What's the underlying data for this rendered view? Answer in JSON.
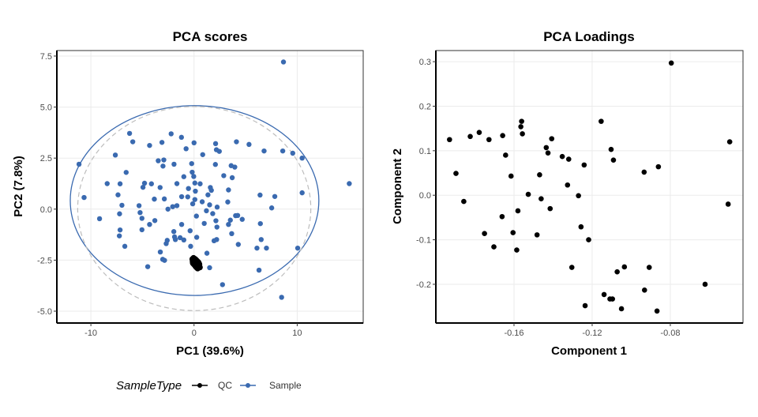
{
  "chart_data": [
    {
      "type": "scatter",
      "title": "PCA scores",
      "xlabel": "PC1 (39.6%)",
      "ylabel": "PC2 (7.8%)",
      "xlim": [
        -13.3,
        16.4
      ],
      "ylim": [
        -5.58,
        7.77
      ],
      "xticks": [
        -10,
        0,
        10
      ],
      "xtick_labels": [
        "-10",
        "0",
        "10"
      ],
      "yticks": [
        -5.0,
        -2.5,
        0.0,
        2.5,
        5.0,
        7.5
      ],
      "ytick_labels": [
        "-5.0",
        "-2.5",
        "0.0",
        "2.5",
        "5.0",
        "7.5"
      ],
      "grid": true,
      "legend": {
        "title": "SampleType",
        "placement": "bottom",
        "entries": [
          {
            "label": "QC",
            "color": "#000000"
          },
          {
            "label": "Sample",
            "color": "#3a6ab0"
          }
        ]
      },
      "ellipses": [
        {
          "name": "Sample",
          "color": "#3a6ab0",
          "style": "solid",
          "cx": 0.05,
          "cy": 0.42,
          "rx": 12.05,
          "ry": 4.65
        },
        {
          "name": "overall",
          "color": "#bdbdbd",
          "style": "dashed",
          "cx": 0.02,
          "cy": 0.03,
          "rx": 11.3,
          "ry": 5.0
        }
      ],
      "series": [
        {
          "name": "Sample",
          "color": "#3a6ab0",
          "points": [
            [
              8.67,
              7.21
            ],
            [
              -11.15,
              2.2
            ],
            [
              -10.66,
              0.57
            ],
            [
              -9.16,
              -0.47
            ],
            [
              -8.42,
              1.25
            ],
            [
              -7.63,
              2.65
            ],
            [
              -7.37,
              0.7
            ],
            [
              -7.24,
              -1.31
            ],
            [
              -7.22,
              -0.23
            ],
            [
              -7.17,
              1.24
            ],
            [
              -7.17,
              -1.02
            ],
            [
              -6.99,
              0.19
            ],
            [
              -6.71,
              -1.82
            ],
            [
              -6.58,
              1.8
            ],
            [
              -6.25,
              3.71
            ],
            [
              -5.94,
              3.3
            ],
            [
              -5.33,
              0.17
            ],
            [
              -5.23,
              -0.17
            ],
            [
              -5.05,
              -0.45
            ],
            [
              -5.05,
              -1.01
            ],
            [
              -4.95,
              1.07
            ],
            [
              -4.8,
              1.27
            ],
            [
              -4.49,
              -2.82
            ],
            [
              -4.31,
              -0.75
            ],
            [
              -4.31,
              3.12
            ],
            [
              -4.13,
              1.24
            ],
            [
              -3.85,
              0.49
            ],
            [
              -3.8,
              -0.56
            ],
            [
              -3.47,
              2.37
            ],
            [
              -3.29,
              1.06
            ],
            [
              -3.27,
              -2.1
            ],
            [
              -3.11,
              3.27
            ],
            [
              -3.04,
              -2.46
            ],
            [
              -3.01,
              2.11
            ],
            [
              -2.93,
              2.41
            ],
            [
              -2.88,
              0.5
            ],
            [
              -2.86,
              -2.51
            ],
            [
              -2.7,
              -1.69
            ],
            [
              -2.6,
              -1.53
            ],
            [
              -2.53,
              0.0
            ],
            [
              -2.22,
              3.69
            ],
            [
              -2.07,
              0.12
            ],
            [
              -1.96,
              -1.1
            ],
            [
              -1.94,
              2.2
            ],
            [
              -1.89,
              -1.36
            ],
            [
              -1.81,
              -1.49
            ],
            [
              -1.66,
              1.25
            ],
            [
              -1.66,
              0.17
            ],
            [
              -1.35,
              -1.4
            ],
            [
              -1.22,
              3.52
            ],
            [
              -1.2,
              -0.75
            ],
            [
              -1.2,
              0.61
            ],
            [
              -0.99,
              -1.51
            ],
            [
              -0.99,
              1.59
            ],
            [
              -0.77,
              2.96
            ],
            [
              -0.61,
              0.6
            ],
            [
              -0.54,
              1.01
            ],
            [
              -0.38,
              -1.06
            ],
            [
              -0.33,
              -1.82
            ],
            [
              -0.23,
              2.23
            ],
            [
              -0.18,
              1.81
            ],
            [
              -0.13,
              0.26
            ],
            [
              -0.03,
              1.6
            ],
            [
              0.0,
              3.25
            ],
            [
              0.08,
              1.28
            ],
            [
              0.08,
              0.47
            ],
            [
              0.13,
              0.88
            ],
            [
              0.23,
              -0.34
            ],
            [
              0.26,
              -1.38
            ],
            [
              0.59,
              1.24
            ],
            [
              0.79,
              0.36
            ],
            [
              0.84,
              2.67
            ],
            [
              0.99,
              -0.7
            ],
            [
              1.2,
              -0.08
            ],
            [
              1.25,
              -2.16
            ],
            [
              1.35,
              0.7
            ],
            [
              1.51,
              -2.87
            ],
            [
              1.51,
              0.21
            ],
            [
              1.58,
              1.06
            ],
            [
              1.68,
              0.92
            ],
            [
              1.81,
              -0.22
            ],
            [
              1.94,
              -1.55
            ],
            [
              2.07,
              2.19
            ],
            [
              2.09,
              3.21
            ],
            [
              2.12,
              -0.57
            ],
            [
              2.17,
              2.91
            ],
            [
              2.19,
              -1.49
            ],
            [
              2.22,
              -0.88
            ],
            [
              2.24,
              0.1
            ],
            [
              2.45,
              2.83
            ],
            [
              2.76,
              -3.7
            ],
            [
              2.88,
              1.64
            ],
            [
              3.27,
              0.35
            ],
            [
              3.34,
              0.94
            ],
            [
              3.34,
              -0.75
            ],
            [
              3.52,
              -0.54
            ],
            [
              3.6,
              2.13
            ],
            [
              3.65,
              -1.2
            ],
            [
              3.7,
              1.54
            ],
            [
              3.95,
              2.06
            ],
            [
              4.03,
              -0.32
            ],
            [
              4.11,
              3.3
            ],
            [
              4.23,
              -0.31
            ],
            [
              4.29,
              -1.73
            ],
            [
              4.67,
              -0.5
            ],
            [
              5.33,
              3.17
            ],
            [
              6.1,
              -1.91
            ],
            [
              6.3,
              -2.99
            ],
            [
              6.4,
              0.69
            ],
            [
              6.43,
              -0.71
            ],
            [
              6.51,
              -1.49
            ],
            [
              6.79,
              2.85
            ],
            [
              7.02,
              -1.91
            ],
            [
              7.53,
              0.06
            ],
            [
              7.83,
              0.62
            ],
            [
              8.49,
              -4.32
            ],
            [
              8.6,
              2.85
            ],
            [
              9.57,
              2.74
            ],
            [
              10.05,
              -1.91
            ],
            [
              10.48,
              2.5
            ],
            [
              10.48,
              0.8
            ],
            [
              15.05,
              1.25
            ]
          ]
        },
        {
          "name": "QC",
          "color": "#000000",
          "points": [
            [
              -0.15,
              -2.45
            ],
            [
              -0.05,
              -2.5
            ],
            [
              0.05,
              -2.55
            ],
            [
              0.15,
              -2.6
            ],
            [
              0.25,
              -2.65
            ],
            [
              0.35,
              -2.7
            ],
            [
              0.45,
              -2.8
            ],
            [
              0.55,
              -2.85
            ],
            [
              -0.1,
              -2.65
            ],
            [
              0.0,
              -2.7
            ],
            [
              0.1,
              -2.75
            ],
            [
              0.2,
              -2.5
            ],
            [
              0.3,
              -2.55
            ],
            [
              0.4,
              -2.6
            ],
            [
              0.5,
              -2.7
            ],
            [
              0.15,
              -2.8
            ],
            [
              0.25,
              -2.85
            ],
            [
              -0.05,
              -2.4
            ],
            [
              0.1,
              -2.45
            ],
            [
              0.35,
              -2.9
            ],
            [
              0.05,
              -2.65
            ],
            [
              0.3,
              -2.75
            ],
            [
              0.45,
              -2.65
            ],
            [
              -0.1,
              -2.55
            ]
          ]
        }
      ]
    },
    {
      "type": "scatter",
      "title": "PCA Loadings",
      "xlabel": "Component 1",
      "ylabel": "Component 2",
      "xlim": [
        -0.2,
        -0.0428
      ],
      "ylim": [
        -0.287,
        0.325
      ],
      "xticks": [
        -0.16,
        -0.12,
        -0.08
      ],
      "xtick_labels": [
        "-0.16",
        "-0.12",
        "-0.08"
      ],
      "yticks": [
        -0.2,
        -0.1,
        0.0,
        0.1,
        0.2,
        0.3
      ],
      "ytick_labels": [
        "-0.2",
        "-0.1",
        "0.0",
        "0.1",
        "0.2",
        "0.3"
      ],
      "grid": true,
      "series": [
        {
          "name": "loadings",
          "color": "#000000",
          "points": [
            [
              -0.193,
              0.125
            ],
            [
              -0.1897,
              0.049
            ],
            [
              -0.1857,
              -0.014
            ],
            [
              -0.1824,
              0.132
            ],
            [
              -0.1778,
              0.141
            ],
            [
              -0.1751,
              -0.086
            ],
            [
              -0.1728,
              0.125
            ],
            [
              -0.1703,
              -0.116
            ],
            [
              -0.1661,
              -0.048
            ],
            [
              -0.1658,
              0.134
            ],
            [
              -0.1643,
              0.09
            ],
            [
              -0.1615,
              0.043
            ],
            [
              -0.1605,
              -0.084
            ],
            [
              -0.1586,
              -0.123
            ],
            [
              -0.158,
              -0.035
            ],
            [
              -0.1565,
              0.154
            ],
            [
              -0.1561,
              0.166
            ],
            [
              -0.1557,
              0.138
            ],
            [
              -0.1527,
              0.002
            ],
            [
              -0.1482,
              -0.089
            ],
            [
              -0.1469,
              0.046
            ],
            [
              -0.1461,
              -0.008
            ],
            [
              -0.1435,
              0.107
            ],
            [
              -0.1426,
              0.095
            ],
            [
              -0.1415,
              -0.03
            ],
            [
              -0.1407,
              0.127
            ],
            [
              -0.1353,
              0.087
            ],
            [
              -0.1326,
              0.023
            ],
            [
              -0.132,
              0.081
            ],
            [
              -0.1304,
              -0.162
            ],
            [
              -0.127,
              -0.001
            ],
            [
              -0.1257,
              -0.071
            ],
            [
              -0.1241,
              0.068
            ],
            [
              -0.1236,
              -0.248
            ],
            [
              -0.1218,
              -0.1
            ],
            [
              -0.1154,
              0.166
            ],
            [
              -0.1139,
              -0.223
            ],
            [
              -0.1109,
              -0.233
            ],
            [
              -0.1096,
              -0.233
            ],
            [
              -0.1103,
              0.103
            ],
            [
              -0.1091,
              0.079
            ],
            [
              -0.1072,
              -0.172
            ],
            [
              -0.105,
              -0.255
            ],
            [
              -0.1035,
              -0.161
            ],
            [
              -0.0934,
              0.052
            ],
            [
              -0.0932,
              -0.213
            ],
            [
              -0.0908,
              -0.162
            ],
            [
              -0.0868,
              -0.26
            ],
            [
              -0.0861,
              0.064
            ],
            [
              -0.0795,
              0.297
            ],
            [
              -0.0622,
              -0.2
            ],
            [
              -0.0504,
              -0.02
            ],
            [
              -0.0496,
              0.12
            ]
          ]
        }
      ]
    }
  ]
}
